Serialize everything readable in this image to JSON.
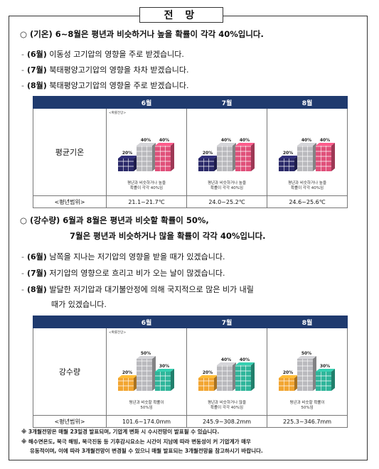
{
  "title": "전 망",
  "temp": {
    "heading": "○ (기온) 6~8월은 평년과 비슷하거나 높을 확률이 각각 40%입니다.",
    "bullets": [
      {
        "month": "(6월)",
        "text": " 이동성 고기압의 영향을 주로 받겠습니다."
      },
      {
        "month": "(7월)",
        "text": " 북태평양고기압의 영향을 차차 받겠습니다."
      },
      {
        "month": "(8월)",
        "text": " 북태평양고기압의 영향을 주로 받겠습니다."
      }
    ],
    "table": {
      "months": [
        "6월",
        "7월",
        "8월"
      ],
      "row_label": "평균기온",
      "range_label": "<평년범위>",
      "legend_tag": "<확률전망>",
      "cells": [
        {
          "pcts": [
            "20%",
            "40%",
            "40%"
          ],
          "values": [
            20,
            40,
            40
          ],
          "caption1": "평년과 비슷하거나 높을",
          "caption2": "확률이 각각 40%임",
          "range": "21.1~21.7℃"
        },
        {
          "pcts": [
            "20%",
            "40%",
            "40%"
          ],
          "values": [
            20,
            40,
            40
          ],
          "caption1": "평년과 비슷하거나 높을",
          "caption2": "확률이 각각 40%임",
          "range": "24.0~25.2℃"
        },
        {
          "pcts": [
            "20%",
            "40%",
            "40%"
          ],
          "values": [
            20,
            40,
            40
          ],
          "caption1": "평년과 비슷하거나 높을",
          "caption2": "확률이 각각 40%임",
          "range": "24.6~25.6℃"
        }
      ],
      "colors": [
        "#2b2a6a",
        "#b9b9bd",
        "#e0507a"
      ]
    }
  },
  "rain": {
    "heading1": "○ (강수량) 6월과 8월은 평년과 비슷할 확률이 50%,",
    "heading2": "7월은 평년과 비슷하거나 많을 확률이 각각 40%입니다.",
    "bullets": [
      {
        "month": "(6월)",
        "text": " 남쪽을 지나는 저기압의 영향을 받을 때가 있겠습니다."
      },
      {
        "month": "(7월)",
        "text": " 저기압의 영향으로 흐리고 비가 오는 날이 많겠습니다."
      },
      {
        "month": "(8월)",
        "text": " 발달한 저기압과 대기불안정에 의해 국지적으로 많은 비가 내릴"
      }
    ],
    "bullet3_cont": "때가 있겠습니다.",
    "table": {
      "months": [
        "6월",
        "7월",
        "8월"
      ],
      "row_label": "강수량",
      "range_label": "<평년범위>",
      "legend_tag": "<확률전망>",
      "cells": [
        {
          "pcts": [
            "20%",
            "50%",
            "30%"
          ],
          "values": [
            20,
            50,
            30
          ],
          "caption1": "평년과 비슷할 확률이",
          "caption2": "50%임",
          "range": "101.6~174.0mm"
        },
        {
          "pcts": [
            "20%",
            "40%",
            "40%"
          ],
          "values": [
            20,
            40,
            40
          ],
          "caption1": "평년과 비슷하거나 많을",
          "caption2": "확률이 각각 40%임",
          "range": "245.9~308.2mm"
        },
        {
          "pcts": [
            "20%",
            "50%",
            "30%"
          ],
          "values": [
            20,
            50,
            30
          ],
          "caption1": "평년과 비슷할 확률이",
          "caption2": "50%임",
          "range": "225.3~346.7mm"
        }
      ],
      "colors": [
        "#f2a531",
        "#b9b9bd",
        "#2fb59a"
      ]
    }
  },
  "notes": [
    "※ 3개월전망은 매월 23일경 발표되며, 기압계 변화 시 수시전망이 발표될 수 있습니다.",
    "※ 해수면온도, 북극 해빙, 북극진동 등 기후감시요소는 시간이 지남에 따라 변동성이 커 기압계가 매우",
    "유동적이며, 이에 따라 3개월전망이 변경될 수 있으니 매월 발표되는 3개월전망을 참고하시기 바랍니다."
  ]
}
